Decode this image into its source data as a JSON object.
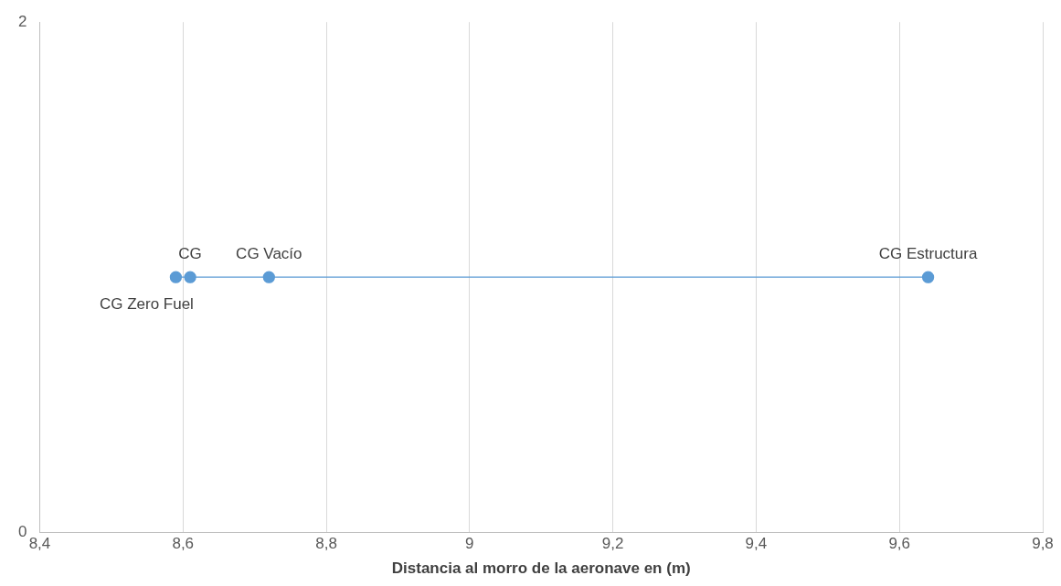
{
  "chart_data": {
    "type": "line",
    "xlabel": "Distancia al morro de la aeronave en (m)",
    "series": [
      {
        "color": "#5b9bd5",
        "x": [
          8.59,
          8.61,
          8.72,
          9.64
        ],
        "values": [
          1,
          1,
          1,
          1
        ]
      }
    ],
    "xlim": [
      8.4,
      9.8
    ],
    "xticks": [
      {
        "value": 8.4,
        "label": "8,4"
      },
      {
        "value": 8.6,
        "label": "8,6"
      },
      {
        "value": 8.8,
        "label": "8,8"
      },
      {
        "value": 9,
        "label": "9"
      },
      {
        "value": 9.2,
        "label": "9,2"
      },
      {
        "value": 9.4,
        "label": "9,4"
      },
      {
        "value": 9.6,
        "label": "9,6"
      },
      {
        "value": 9.8,
        "label": "9,8"
      }
    ],
    "ylim": [
      0,
      2
    ],
    "yticks": [
      0,
      2
    ],
    "grid": "x",
    "legend": false,
    "marker": "circle",
    "line_style": "solid",
    "annotations": [
      {
        "text": "CG Zero Fuel",
        "x": 8.59,
        "y": 1
      },
      {
        "text": "CG",
        "x": 8.61,
        "y": 1
      },
      {
        "text": "CG Vacío",
        "x": 8.72,
        "y": 1
      },
      {
        "text": "CG Estructura",
        "x": 9.64,
        "y": 1
      }
    ]
  }
}
